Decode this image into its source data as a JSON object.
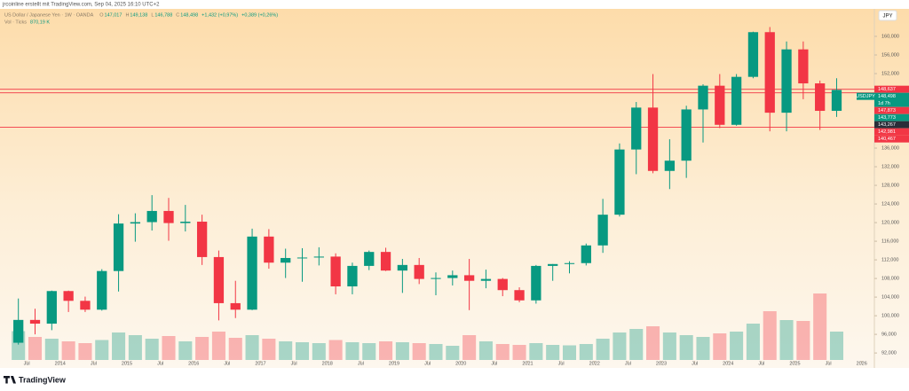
{
  "header": {
    "attribution": "jrcoinline erstellt mit TradingView.com, Sep 04, 2025 16:10 UTC+2",
    "symbol": "US Dollar / Japanese Yen · 1W · OANDA",
    "ohlc": [
      {
        "key": "O",
        "value": "147,017"
      },
      {
        "key": "H",
        "value": "149,138"
      },
      {
        "key": "L",
        "value": "146,788"
      },
      {
        "key": "C",
        "value": "148,498"
      }
    ],
    "change": "+1,432 (+0,97%)",
    "change2": "+0,389 (+0,26%)",
    "volume_label": "Vol · Ticks",
    "volume_value": "870,19 K",
    "currency": "JPY",
    "brand": "TradingView"
  },
  "chart_data": {
    "type": "candlestick",
    "x": [
      2013.375,
      2013.625,
      2013.875,
      2014.125,
      2014.375,
      2014.625,
      2014.875,
      2015.125,
      2015.375,
      2015.625,
      2015.875,
      2016.125,
      2016.375,
      2016.625,
      2016.875,
      2017.125,
      2017.375,
      2017.625,
      2017.875,
      2018.125,
      2018.375,
      2018.625,
      2018.875,
      2019.125,
      2019.375,
      2019.625,
      2019.875,
      2020.125,
      2020.375,
      2020.625,
      2020.875,
      2021.125,
      2021.375,
      2021.625,
      2021.875,
      2022.125,
      2022.375,
      2022.625,
      2022.875,
      2023.125,
      2023.375,
      2023.625,
      2023.875,
      2024.125,
      2024.375,
      2024.625,
      2024.875,
      2025.125,
      2025.375,
      2025.625
    ],
    "open": [
      94.2,
      99.1,
      98.3,
      105.3,
      103.2,
      101.3,
      109.6,
      119.8,
      120.1,
      122.5,
      119.9,
      120.2,
      112.6,
      102.7,
      101.3,
      117.0,
      111.4,
      112.4,
      112.5,
      112.7,
      106.3,
      110.7,
      113.7,
      109.7,
      110.9,
      107.9,
      108.1,
      108.7,
      107.5,
      107.9,
      105.5,
      103.3,
      110.7,
      111.1,
      111.3,
      115.1,
      121.7,
      135.7,
      144.7,
      131.1,
      133.3,
      144.3,
      149.4,
      141.0,
      151.3,
      160.9,
      143.6,
      157.2,
      149.9,
      144.0
    ],
    "high": [
      103.7,
      101.5,
      105.4,
      105.4,
      104.1,
      110.0,
      121.8,
      122.0,
      125.9,
      125.3,
      123.8,
      121.7,
      114.0,
      107.5,
      118.7,
      118.6,
      114.4,
      114.5,
      114.7,
      113.4,
      111.4,
      114.0,
      114.6,
      112.2,
      112.4,
      109.3,
      109.7,
      112.2,
      109.9,
      108.1,
      106.1,
      110.9,
      111.1,
      111.7,
      115.5,
      125.1,
      137.0,
      145.9,
      151.9,
      137.9,
      145.1,
      149.7,
      151.9,
      151.9,
      161.0,
      162.0,
      158.9,
      158.9,
      150.5,
      151.0
    ],
    "low": [
      93.8,
      96.0,
      96.9,
      100.8,
      100.8,
      101.1,
      105.2,
      115.9,
      118.3,
      116.1,
      118.1,
      110.9,
      99.0,
      99.5,
      101.2,
      110.1,
      108.1,
      107.3,
      110.8,
      104.6,
      104.6,
      109.8,
      109.6,
      104.9,
      106.8,
      104.4,
      106.5,
      101.2,
      105.9,
      104.2,
      102.9,
      102.6,
      107.5,
      109.1,
      110.8,
      113.5,
      121.3,
      130.4,
      130.6,
      127.2,
      129.6,
      137.2,
      140.3,
      140.8,
      151.0,
      139.6,
      139.6,
      146.5,
      139.9,
      142.7
    ],
    "close": [
      99.1,
      98.3,
      105.3,
      103.2,
      101.3,
      109.6,
      119.8,
      120.1,
      122.5,
      119.9,
      120.2,
      112.6,
      102.7,
      101.3,
      117.0,
      111.4,
      112.4,
      112.5,
      112.7,
      106.3,
      110.7,
      113.7,
      109.7,
      110.9,
      107.9,
      108.1,
      108.7,
      107.5,
      107.9,
      105.5,
      103.3,
      110.7,
      111.1,
      111.3,
      115.1,
      121.7,
      135.7,
      144.7,
      131.1,
      133.3,
      144.3,
      149.4,
      141.0,
      151.3,
      160.9,
      143.6,
      157.2,
      149.9,
      144.0,
      148.5
    ],
    "volume": [
      650,
      520,
      480,
      420,
      380,
      450,
      620,
      560,
      480,
      540,
      420,
      520,
      640,
      500,
      560,
      480,
      420,
      400,
      380,
      450,
      400,
      380,
      420,
      400,
      380,
      360,
      320,
      560,
      420,
      360,
      340,
      380,
      340,
      330,
      360,
      480,
      620,
      700,
      760,
      620,
      560,
      520,
      600,
      640,
      820,
      1100,
      900,
      880,
      1500,
      640
    ],
    "volume_ylim": [
      0,
      3000
    ],
    "up_color": "#089981",
    "down_color": "#f23645",
    "xlim": [
      2013.1,
      2026.19
    ],
    "xticks": [
      {
        "value": 2013.5,
        "label": "Jul"
      },
      2014,
      {
        "value": 2014.5,
        "label": "Jul"
      },
      2015,
      {
        "value": 2015.5,
        "label": "Jul"
      },
      2016,
      {
        "value": 2016.5,
        "label": "Jul"
      },
      2017,
      {
        "value": 2017.5,
        "label": "Jul"
      },
      2018,
      {
        "value": 2018.5,
        "label": "Jul"
      },
      2019,
      {
        "value": 2019.5,
        "label": "Jul"
      },
      2020,
      {
        "value": 2020.5,
        "label": "Jul"
      },
      2021,
      {
        "value": 2021.5,
        "label": "Jul"
      },
      2022,
      {
        "value": 2022.5,
        "label": "Jul"
      },
      2023,
      {
        "value": 2023.5,
        "label": "Jul"
      },
      2024,
      {
        "value": 2024.5,
        "label": "Jul"
      },
      2025,
      {
        "value": 2025.5,
        "label": "Jul"
      },
      2026
    ],
    "ylim": [
      90.5,
      165.9
    ],
    "yticks": [
      {
        "value": 92,
        "label": "92,000"
      },
      {
        "value": 96,
        "label": "96,000"
      },
      {
        "value": 100,
        "label": "100,000"
      },
      {
        "value": 104,
        "label": "104,000"
      },
      {
        "value": 108,
        "label": "108,000"
      },
      {
        "value": 112,
        "label": "112,000"
      },
      {
        "value": 116,
        "label": "116,000"
      },
      {
        "value": 120,
        "label": "120,000"
      },
      {
        "value": 124,
        "label": "124,000"
      },
      {
        "value": 128,
        "label": "128,000"
      },
      {
        "value": 132,
        "label": "132,000"
      },
      {
        "value": 136,
        "label": "136,000"
      },
      {
        "value": 140,
        "label": "140,000"
      },
      {
        "value": 144,
        "label": "144,000"
      },
      {
        "value": 148,
        "label": "148,000"
      },
      {
        "value": 152,
        "label": "152,000"
      },
      {
        "value": 156,
        "label": "156,000"
      },
      {
        "value": 160,
        "label": "160,000"
      }
    ],
    "price_labels": [
      {
        "value": 148.637,
        "label": "148,637",
        "color": "#f23645",
        "line": true
      },
      {
        "value": 148.498,
        "label": "148,498",
        "color": "#089981",
        "title": "USDJPY",
        "countdown": "1d 7h"
      },
      {
        "value": 147.873,
        "label": "147,873",
        "color": "#f23645",
        "line": true
      },
      {
        "value": 143.773,
        "label": "143,773",
        "color": "#089981"
      },
      {
        "value": 143.267,
        "label": "143,267",
        "color": "#2a2e39"
      },
      {
        "value": 142.981,
        "label": "142,981",
        "color": "#f23645"
      },
      {
        "value": 140.467,
        "label": "140,467",
        "color": "#f23645",
        "line": true
      }
    ]
  }
}
